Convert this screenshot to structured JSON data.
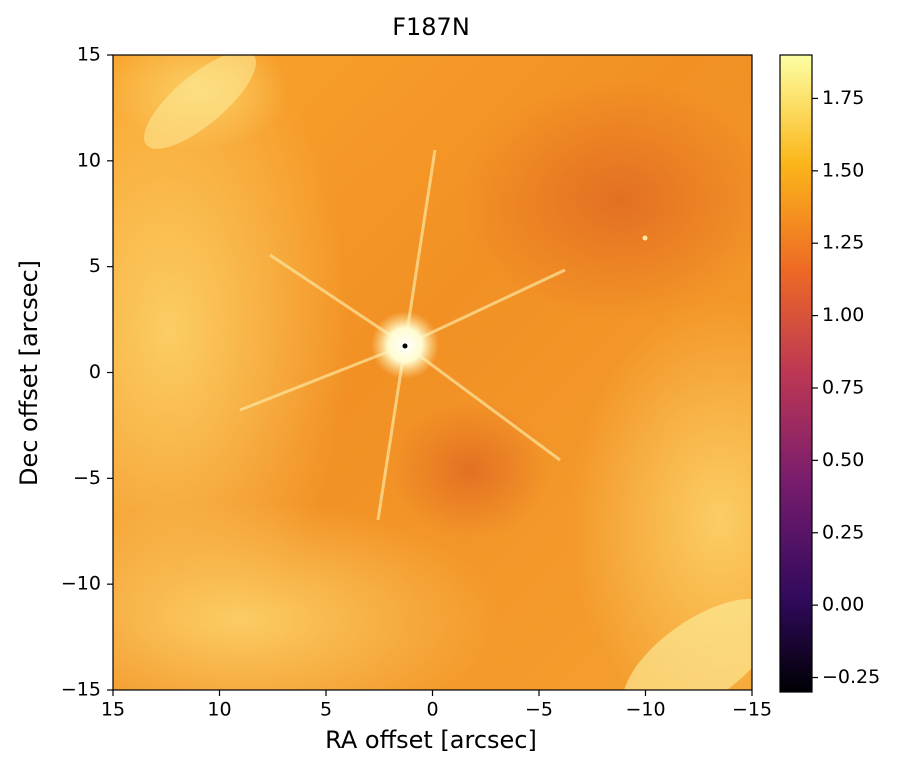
{
  "chart_data": {
    "type": "image",
    "title": "F187N",
    "xlabel": "RA offset [arcsec]",
    "ylabel": "Dec offset [arcsec]",
    "xlim": [
      15,
      -15
    ],
    "ylim": [
      -15,
      15
    ],
    "xticks": [
      15,
      10,
      5,
      0,
      {
        "value": -5,
        "label": "−5"
      },
      {
        "value": -10,
        "label": "−10"
      },
      {
        "value": -15,
        "label": "−15"
      }
    ],
    "yticks": [
      {
        "value": -15,
        "label": "−15"
      },
      {
        "value": -10,
        "label": "−10"
      },
      {
        "value": -5,
        "label": "−5"
      },
      0,
      5,
      10,
      15
    ],
    "colorbar": {
      "clim": [
        -0.3,
        1.9
      ],
      "ticks": [
        {
          "value": -0.25,
          "label": "−0.25"
        },
        {
          "value": 0,
          "label": "0.00"
        },
        0.25,
        {
          "value": 0.5,
          "label": "0.50"
        },
        0.75,
        {
          "value": 1,
          "label": "1.00"
        },
        1.25,
        {
          "value": 1.5,
          "label": "1.50"
        },
        1.75
      ]
    }
  }
}
